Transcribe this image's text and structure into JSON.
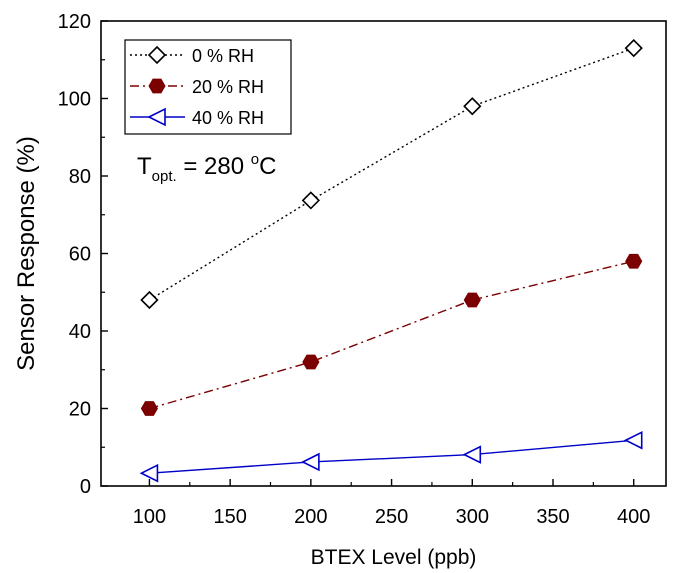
{
  "chart_data": {
    "type": "line",
    "xlabel": "BTEX Level (ppb)",
    "ylabel": "Sensor Response (%)",
    "xlim": [
      70,
      420
    ],
    "ylim": [
      0,
      120
    ],
    "x_ticks": [
      100,
      150,
      200,
      250,
      300,
      350,
      400
    ],
    "y_ticks": [
      0,
      20,
      40,
      60,
      80,
      100,
      120
    ],
    "grid": false,
    "legend_position": "top-left",
    "annotation": {
      "text_main": "T",
      "text_sub": "opt.",
      "text_rest": " = 280 ",
      "text_sup": "o",
      "text_unit": "C"
    },
    "series": [
      {
        "name": "0 % RH",
        "color": "#000000",
        "line_style": "dotted",
        "marker": "diamond-open",
        "x": [
          100,
          200,
          300,
          400
        ],
        "y": [
          48,
          73.7,
          98,
          113
        ]
      },
      {
        "name": "20 % RH",
        "color": "#7b0000",
        "line_style": "dash-dot",
        "marker": "hexagon-filled",
        "x": [
          100,
          200,
          300,
          400
        ],
        "y": [
          20,
          32,
          48,
          58
        ]
      },
      {
        "name": "40 % RH",
        "color": "#0000c8",
        "line_style": "solid",
        "marker": "triangle-left-open",
        "x": [
          100,
          200,
          300,
          400
        ],
        "y": [
          3.3,
          6.2,
          8.1,
          11.8
        ]
      }
    ]
  }
}
